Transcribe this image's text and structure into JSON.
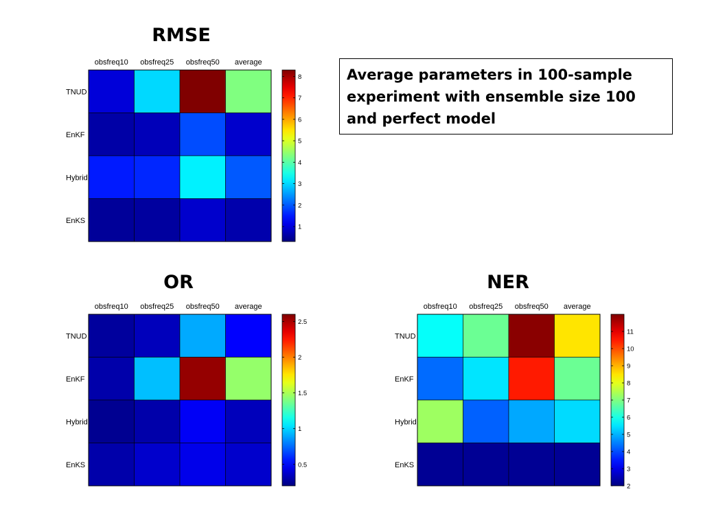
{
  "slide": {
    "note": "Average parameters in 100-sample experiment with ensemble size 100 and perfect model"
  },
  "chart_data": [
    {
      "type": "heatmap",
      "title": "RMSE",
      "columns": [
        "obsfreq10",
        "obsfreq25",
        "obsfreq50",
        "average"
      ],
      "rows": [
        "TNUD",
        "EnKF",
        "Hybrid",
        "EnKS"
      ],
      "values": [
        [
          1.0,
          3.0,
          8.3,
          4.3
        ],
        [
          0.6,
          0.75,
          1.9,
          0.9
        ],
        [
          1.5,
          1.6,
          3.2,
          2.0
        ],
        [
          0.5,
          0.55,
          0.9,
          0.65
        ]
      ],
      "colorbar": {
        "min": 0.3,
        "max": 8.3,
        "ticks": [
          1,
          2,
          3,
          4,
          5,
          6,
          7,
          8
        ]
      },
      "colormap": "jet"
    },
    {
      "type": "heatmap",
      "title": "OR",
      "columns": [
        "obsfreq10",
        "obsfreq25",
        "obsfreq50",
        "average"
      ],
      "rows": [
        "TNUD",
        "EnKF",
        "Hybrid",
        "EnKS"
      ],
      "values": [
        [
          0.27,
          0.34,
          0.9,
          0.5
        ],
        [
          0.3,
          0.95,
          2.55,
          1.45
        ],
        [
          0.24,
          0.3,
          0.48,
          0.34
        ],
        [
          0.3,
          0.38,
          0.45,
          0.38
        ]
      ],
      "colorbar": {
        "min": 0.2,
        "max": 2.6,
        "ticks": [
          0.5,
          1,
          1.5,
          2,
          2.5
        ]
      },
      "colormap": "jet"
    },
    {
      "type": "heatmap",
      "title": "NER",
      "columns": [
        "obsfreq10",
        "obsfreq25",
        "obsfreq50",
        "average"
      ],
      "rows": [
        "TNUD",
        "EnKF",
        "Hybrid",
        "EnKS"
      ],
      "values": [
        [
          5.8,
          6.8,
          11.9,
          8.5
        ],
        [
          4.3,
          5.5,
          10.5,
          6.8
        ],
        [
          7.3,
          4.2,
          4.9,
          5.4
        ],
        [
          2.2,
          2.2,
          2.2,
          2.2
        ]
      ],
      "colorbar": {
        "min": 2,
        "max": 12,
        "ticks": [
          2,
          3,
          4,
          5,
          6,
          7,
          8,
          9,
          10,
          11
        ]
      },
      "colormap": "jet"
    }
  ]
}
